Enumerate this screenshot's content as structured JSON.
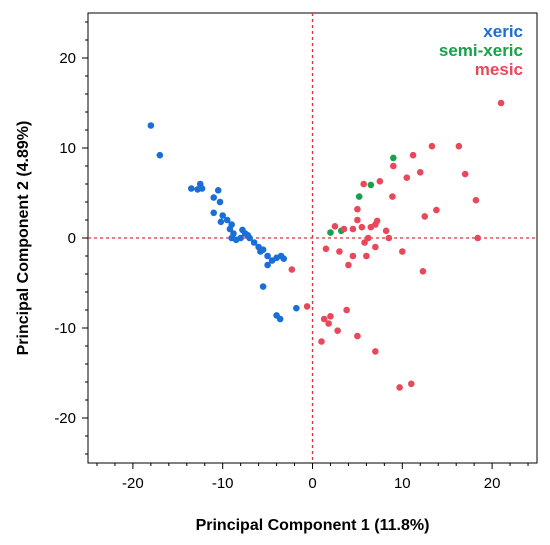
{
  "chart_data": {
    "type": "scatter",
    "title": "",
    "xlabel": "Principal Component 1 (11.8%)",
    "ylabel": "Principal Component 2 (4.89%)",
    "xlim": [
      -25,
      25
    ],
    "ylim": [
      -25,
      25
    ],
    "xticks": [
      -20,
      -10,
      0,
      10,
      20
    ],
    "yticks": [
      -20,
      -10,
      0,
      10,
      20
    ],
    "grid": false,
    "reference_lines": {
      "x": 0,
      "y": 0,
      "style": "dashed",
      "color": "#e03040"
    },
    "legend_position": "top-right",
    "series": [
      {
        "name": "xeric",
        "color": "#1a6fd6",
        "points": [
          [
            -18.0,
            12.5
          ],
          [
            -17.0,
            9.2
          ],
          [
            -13.5,
            5.5
          ],
          [
            -12.8,
            5.4
          ],
          [
            -12.5,
            6.0
          ],
          [
            -12.3,
            5.5
          ],
          [
            -11.0,
            4.5
          ],
          [
            -10.5,
            5.3
          ],
          [
            -10.3,
            4.0
          ],
          [
            -11.0,
            2.8
          ],
          [
            -10.0,
            2.5
          ],
          [
            -9.5,
            2.0
          ],
          [
            -9.0,
            1.5
          ],
          [
            -10.2,
            1.8
          ],
          [
            -9.2,
            1.0
          ],
          [
            -8.8,
            0.5
          ],
          [
            -9.0,
            0.0
          ],
          [
            -8.5,
            -0.2
          ],
          [
            -8.0,
            0.0
          ],
          [
            -7.8,
            0.9
          ],
          [
            -7.5,
            0.5
          ],
          [
            -7.2,
            0.3
          ],
          [
            -7.0,
            0.0
          ],
          [
            -6.5,
            -0.5
          ],
          [
            -6.0,
            -1.0
          ],
          [
            -5.8,
            -1.5
          ],
          [
            -5.5,
            -1.3
          ],
          [
            -5.0,
            -2.0
          ],
          [
            -4.5,
            -2.5
          ],
          [
            -4.0,
            -2.2
          ],
          [
            -3.5,
            -2.0
          ],
          [
            -3.2,
            -2.3
          ],
          [
            -5.0,
            -3.0
          ],
          [
            -5.5,
            -5.4
          ],
          [
            -4.0,
            -8.6
          ],
          [
            -3.6,
            -9.0
          ],
          [
            -1.8,
            -7.8
          ]
        ]
      },
      {
        "name": "semi-xeric",
        "color": "#19a04a",
        "points": [
          [
            2.0,
            0.6
          ],
          [
            3.2,
            0.8
          ],
          [
            5.2,
            4.6
          ],
          [
            6.5,
            5.9
          ],
          [
            9.0,
            8.9
          ]
        ]
      },
      {
        "name": "mesic",
        "color": "#e8485a",
        "points": [
          [
            21.0,
            15.0
          ],
          [
            13.3,
            10.2
          ],
          [
            16.3,
            10.2
          ],
          [
            11.2,
            9.2
          ],
          [
            9.0,
            8.0
          ],
          [
            10.5,
            6.7
          ],
          [
            12.0,
            7.3
          ],
          [
            17.0,
            7.1
          ],
          [
            7.5,
            6.3
          ],
          [
            5.7,
            6.0
          ],
          [
            8.9,
            4.6
          ],
          [
            18.2,
            4.2
          ],
          [
            13.8,
            3.1
          ],
          [
            5.0,
            3.2
          ],
          [
            12.5,
            2.4
          ],
          [
            5.0,
            2.0
          ],
          [
            7.2,
            1.9
          ],
          [
            2.5,
            1.3
          ],
          [
            3.5,
            1.0
          ],
          [
            4.5,
            1.0
          ],
          [
            5.5,
            1.2
          ],
          [
            6.5,
            1.2
          ],
          [
            7.0,
            1.5
          ],
          [
            8.2,
            0.8
          ],
          [
            8.5,
            0.0
          ],
          [
            6.2,
            0.0
          ],
          [
            18.4,
            0.0
          ],
          [
            5.8,
            -0.5
          ],
          [
            7.0,
            -1.0
          ],
          [
            1.5,
            -1.2
          ],
          [
            3.0,
            -1.5
          ],
          [
            4.5,
            -2.0
          ],
          [
            6.0,
            -2.0
          ],
          [
            10.0,
            -1.5
          ],
          [
            4.0,
            -3.0
          ],
          [
            -2.3,
            -3.5
          ],
          [
            12.3,
            -3.7
          ],
          [
            -0.6,
            -7.6
          ],
          [
            1.3,
            -9.0
          ],
          [
            3.8,
            -8.0
          ],
          [
            2.0,
            -8.7
          ],
          [
            1.8,
            -9.5
          ],
          [
            2.8,
            -10.3
          ],
          [
            5.0,
            -10.9
          ],
          [
            1.0,
            -11.5
          ],
          [
            7.0,
            -12.6
          ],
          [
            9.7,
            -16.6
          ],
          [
            11.0,
            -16.2
          ]
        ]
      }
    ]
  }
}
